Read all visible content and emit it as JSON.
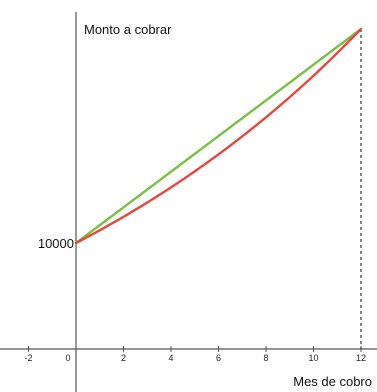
{
  "chart_data": {
    "type": "line",
    "ylabel": "Monto a cobrar",
    "xlabel": "Mes de cobro",
    "xlim": [
      -2.5,
      12.5
    ],
    "x_ticks": [
      -2,
      0,
      2,
      4,
      6,
      8,
      10,
      12
    ],
    "x_tick_labels": [
      "-2",
      "0",
      "2",
      "4",
      "6",
      "8",
      "10",
      "12"
    ],
    "y_value_label": "10000",
    "y_value": 10000,
    "grid": false,
    "series": [
      {
        "color": "#7ac143",
        "x": [
          0,
          12
        ],
        "y": [
          10000,
          20000
        ]
      },
      {
        "color": "#e8473e",
        "x": [
          0,
          1,
          2,
          3,
          4,
          5,
          6,
          7,
          8,
          9,
          10,
          11,
          12
        ],
        "y": [
          10000,
          10595,
          11225,
          11892,
          12599,
          13348,
          14142,
          14983,
          15874,
          16818,
          17818,
          18877,
          20000
        ]
      }
    ],
    "reference_line": {
      "x": 12,
      "style": "dashed"
    }
  }
}
